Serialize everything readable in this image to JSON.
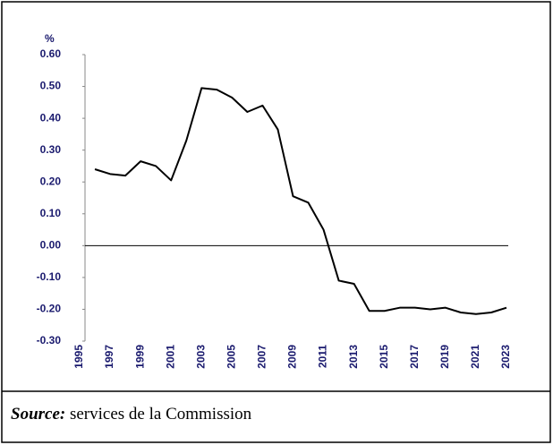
{
  "chart_data": {
    "type": "line",
    "y_label": "%",
    "x": [
      1996,
      1997,
      1998,
      1999,
      2000,
      2001,
      2002,
      2003,
      2004,
      2005,
      2006,
      2007,
      2008,
      2009,
      2010,
      2011,
      2012,
      2013,
      2014,
      2015,
      2016,
      2017,
      2018,
      2019,
      2020,
      2021,
      2022,
      2023
    ],
    "series": [
      {
        "color": "#000000",
        "values": [
          0.24,
          0.225,
          0.22,
          0.265,
          0.25,
          0.205,
          0.33,
          0.495,
          0.49,
          0.465,
          0.42,
          0.44,
          0.365,
          0.155,
          0.135,
          0.05,
          -0.11,
          -0.12,
          -0.205,
          -0.205,
          -0.195,
          -0.195,
          -0.2,
          -0.195,
          -0.21,
          -0.215,
          -0.21,
          -0.195
        ]
      }
    ],
    "xlim": [
      1995,
      2023
    ],
    "xticks": [
      1995,
      1997,
      1999,
      2001,
      2003,
      2005,
      2007,
      2009,
      2011,
      2013,
      2015,
      2017,
      2019,
      2021,
      2023
    ],
    "ylim": [
      -0.3,
      0.6
    ],
    "yticks": [
      {
        "value": 0.6,
        "label": "0.60"
      },
      {
        "value": 0.5,
        "label": "0.50"
      },
      {
        "value": 0.4,
        "label": "0.40"
      },
      {
        "value": 0.3,
        "label": "0.30"
      },
      {
        "value": 0.2,
        "label": "0.20"
      },
      {
        "value": 0.1,
        "label": "0.10"
      },
      {
        "value": 0,
        "label": "0.00"
      },
      {
        "value": -0.1,
        "label": "-0.10"
      },
      {
        "value": -0.2,
        "label": "-0.20"
      },
      {
        "value": -0.3,
        "label": "-0.30"
      }
    ]
  },
  "source": {
    "label": "Source:",
    "text": "services de la Commission"
  }
}
